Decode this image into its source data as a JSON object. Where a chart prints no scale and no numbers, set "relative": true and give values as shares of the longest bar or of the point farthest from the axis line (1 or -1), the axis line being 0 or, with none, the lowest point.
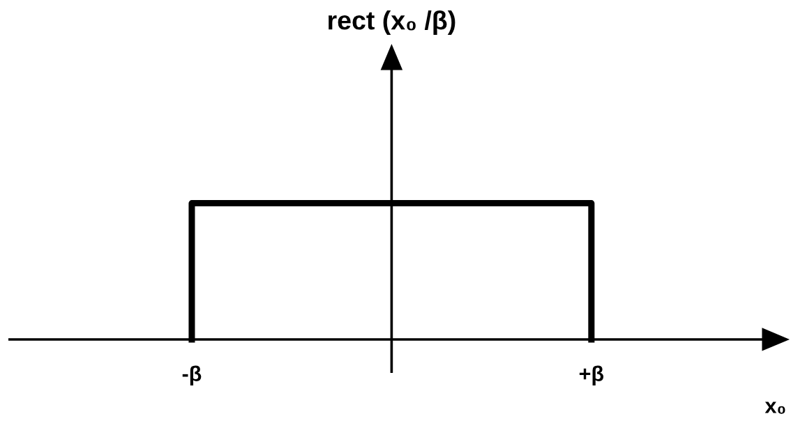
{
  "chart_data": {
    "type": "line",
    "relative": true,
    "title": "rect (x₀ /β)",
    "xlabel": "x₀",
    "categories": [
      "-β",
      "+β"
    ],
    "tick_labels": "x",
    "line_style": "solid",
    "series": [
      {
        "color": "#000000",
        "x": [
          "-β",
          "-β",
          "+β",
          "+β"
        ],
        "values": [
          0,
          1,
          1,
          0
        ]
      }
    ]
  }
}
